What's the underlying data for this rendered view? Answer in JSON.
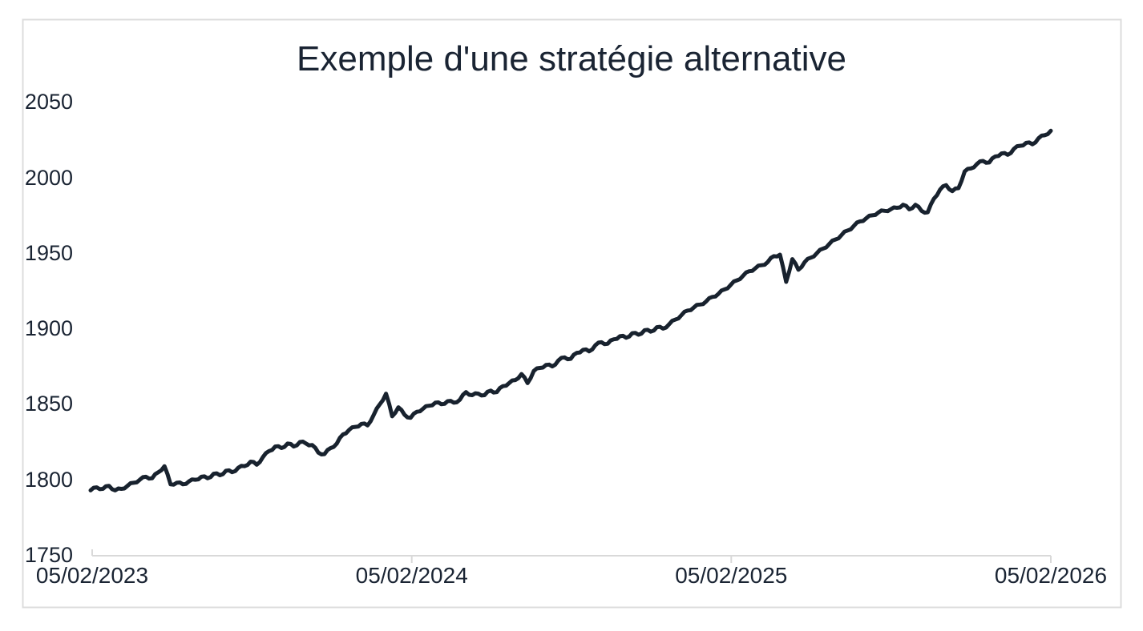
{
  "chart_data": {
    "type": "line",
    "title": "Exemple d'une stratégie alternative",
    "xlabel": "",
    "ylabel": "",
    "ylim": [
      1750,
      2050
    ],
    "y_ticks": [
      2050,
      2000,
      1950,
      1900,
      1850,
      1800,
      1750
    ],
    "x_ticks": [
      "05/02/2023",
      "05/02/2024",
      "05/02/2025",
      "05/02/2026"
    ],
    "x_start": "05/02/2023",
    "x_end": "05/02/2026",
    "x_interval": "weekly (estimated)",
    "grid": false,
    "legend": false,
    "line_color": "#18222e",
    "text_color": "#1a2433",
    "axis_color": "#d9d9d9",
    "frame_color": "#dcdcdc",
    "background_color": "#ffffff",
    "series": [
      {
        "values": [
          1793,
          1795,
          1794,
          1796,
          1793,
          1794,
          1796,
          1798,
          1800,
          1802,
          1801,
          1805,
          1809,
          1797,
          1798,
          1797,
          1799,
          1800,
          1802,
          1801,
          1804,
          1803,
          1806,
          1805,
          1808,
          1809,
          1812,
          1810,
          1815,
          1819,
          1822,
          1821,
          1824,
          1822,
          1825,
          1824,
          1823,
          1818,
          1817,
          1821,
          1824,
          1830,
          1833,
          1835,
          1837,
          1836,
          1843,
          1850,
          1857,
          1842,
          1848,
          1843,
          1841,
          1845,
          1847,
          1849,
          1851,
          1850,
          1852,
          1851,
          1853,
          1858,
          1856,
          1857,
          1856,
          1859,
          1858,
          1862,
          1864,
          1866,
          1870,
          1864,
          1872,
          1874,
          1876,
          1875,
          1879,
          1881,
          1880,
          1884,
          1886,
          1885,
          1889,
          1891,
          1890,
          1893,
          1895,
          1894,
          1897,
          1896,
          1899,
          1898,
          1901,
          1900,
          1903,
          1906,
          1909,
          1912,
          1914,
          1916,
          1918,
          1921,
          1923,
          1926,
          1929,
          1932,
          1935,
          1938,
          1940,
          1942,
          1944,
          1948,
          1949,
          1931,
          1946,
          1939,
          1944,
          1947,
          1950,
          1953,
          1956,
          1959,
          1962,
          1965,
          1968,
          1971,
          1973,
          1975,
          1977,
          1978,
          1979,
          1980,
          1982,
          1979,
          1982,
          1978,
          1977,
          1986,
          1992,
          1995,
          1991,
          1993,
          2004,
          2006,
          2009,
          2011,
          2010,
          2014,
          2016,
          2015,
          2019,
          2021,
          2023,
          2022,
          2026,
          2028,
          2031
        ]
      }
    ]
  }
}
